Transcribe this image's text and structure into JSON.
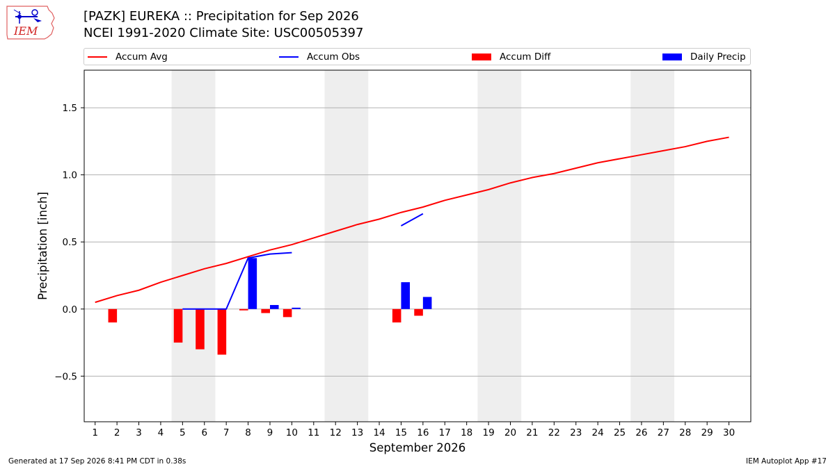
{
  "header": {
    "title_line1": "[PAZK] EUREKA :: Precipitation for Sep 2026",
    "title_line2": "NCEI 1991-2020 Climate Site: USC00505397"
  },
  "logo": {
    "text": "IEM",
    "icon": "iem-iowa-logo-icon"
  },
  "legend": {
    "placement": "top, above plot",
    "items": [
      {
        "label": "Accum Avg",
        "kind": "line",
        "color": "#ff0000"
      },
      {
        "label": "Accum Obs",
        "kind": "line",
        "color": "#0000ff"
      },
      {
        "label": "Accum Diff",
        "kind": "bar",
        "color": "#ff0000"
      },
      {
        "label": "Daily Precip",
        "kind": "bar",
        "color": "#0000ff"
      }
    ]
  },
  "footer": {
    "left": "Generated at 17 Sep 2026 8:41 PM CDT in 0.38s",
    "right": "IEM Autoplot App #17"
  },
  "chart_data": {
    "type": "bar",
    "title": "[PAZK] EUREKA :: Precipitation for Sep 2026",
    "xlabel": "September 2026",
    "ylabel": "Precipitation [inch]",
    "xlim": [
      0.5,
      31
    ],
    "ylim": [
      -0.84,
      1.78
    ],
    "x_ticks": [
      1,
      2,
      3,
      4,
      5,
      6,
      7,
      8,
      9,
      10,
      11,
      12,
      13,
      14,
      15,
      16,
      17,
      18,
      19,
      20,
      21,
      22,
      23,
      24,
      25,
      26,
      27,
      28,
      29,
      30
    ],
    "y_ticks": [
      -0.5,
      0.0,
      0.5,
      1.0,
      1.5
    ],
    "y_tick_labels": [
      "−0.5",
      "0.0",
      "0.5",
      "1.0",
      "1.5"
    ],
    "grid": "horizontal",
    "weekend_shading": [
      [
        4.5,
        6.5
      ],
      [
        11.5,
        13.5
      ],
      [
        18.5,
        20.5
      ],
      [
        25.5,
        27.5
      ]
    ],
    "weekend_color": "#eeeeee",
    "accum_avg": {
      "name": "Accum Avg",
      "color": "#ff0000",
      "x": [
        1,
        2,
        3,
        4,
        5,
        6,
        7,
        8,
        9,
        10,
        11,
        12,
        13,
        14,
        15,
        16,
        17,
        18,
        19,
        20,
        21,
        22,
        23,
        24,
        25,
        26,
        27,
        28,
        29,
        30
      ],
      "values": [
        0.05,
        0.1,
        0.14,
        0.2,
        0.25,
        0.3,
        0.34,
        0.39,
        0.44,
        0.48,
        0.53,
        0.58,
        0.63,
        0.67,
        0.72,
        0.76,
        0.81,
        0.85,
        0.89,
        0.94,
        0.98,
        1.01,
        1.05,
        1.09,
        1.12,
        1.15,
        1.18,
        1.21,
        1.25,
        1.28
      ]
    },
    "accum_obs": {
      "name": "Accum Obs",
      "color": "#0000ff",
      "segments": [
        {
          "x": [
            5,
            6,
            7,
            8,
            9,
            10
          ],
          "values": [
            0.0,
            0.0,
            0.0,
            0.38,
            0.41,
            0.42
          ]
        },
        {
          "x": [
            15,
            16
          ],
          "values": [
            0.62,
            0.71
          ]
        }
      ]
    },
    "accum_diff": {
      "name": "Accum Diff",
      "color": "#ff0000",
      "x": [
        2,
        5,
        6,
        7,
        8,
        9,
        10,
        15,
        16
      ],
      "values": [
        -0.1,
        -0.25,
        -0.3,
        -0.34,
        -0.01,
        -0.03,
        -0.06,
        -0.1,
        -0.05
      ]
    },
    "daily_precip": {
      "name": "Daily Precip",
      "color": "#0000ff",
      "x": [
        8,
        9,
        10,
        15,
        16
      ],
      "values": [
        0.38,
        0.03,
        0.01,
        0.2,
        0.09
      ]
    }
  }
}
